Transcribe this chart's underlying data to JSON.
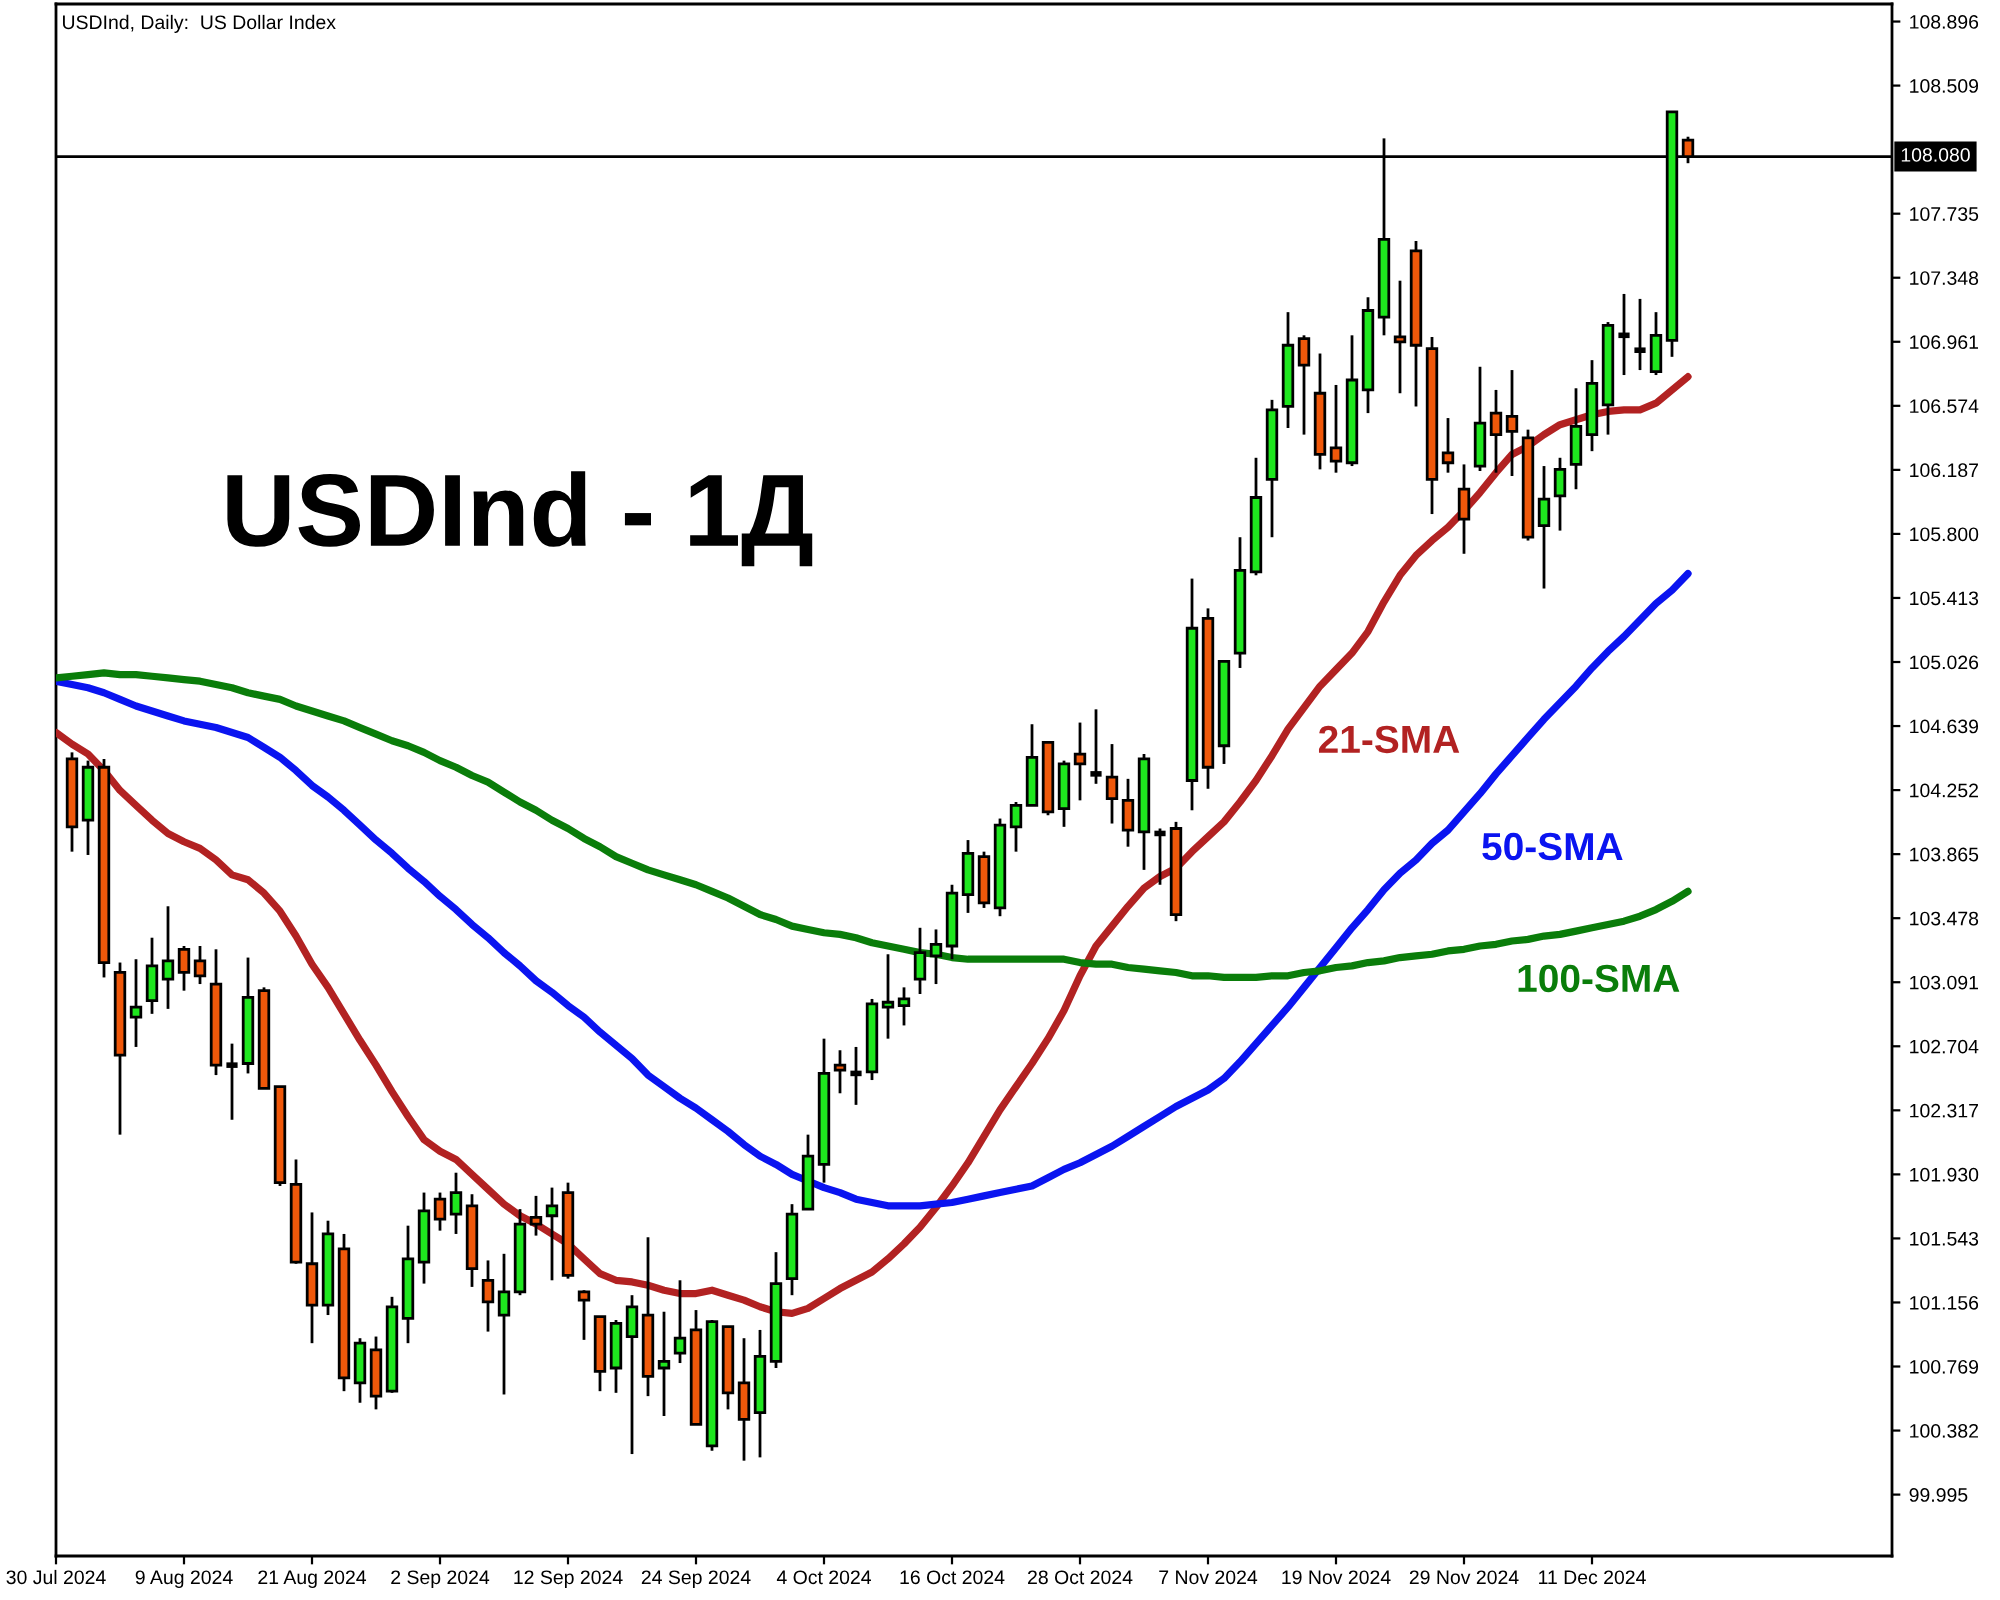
{
  "chart_data": {
    "type": "candlestick",
    "title": "USDInd, Daily:  US Dollar Index",
    "categories": [
      "30 Jul 2024",
      null,
      null,
      null,
      null,
      null,
      null,
      null,
      "9 Aug 2024",
      null,
      null,
      null,
      null,
      null,
      null,
      null,
      "21 Aug 2024",
      null,
      null,
      null,
      null,
      null,
      null,
      null,
      "2 Sep 2024",
      null,
      null,
      null,
      null,
      null,
      null,
      null,
      "12 Sep 2024",
      null,
      null,
      null,
      null,
      null,
      null,
      null,
      "24 Sep 2024",
      null,
      null,
      null,
      null,
      null,
      null,
      null,
      "4 Oct 2024",
      null,
      null,
      null,
      null,
      null,
      null,
      null,
      "16 Oct 2024",
      null,
      null,
      null,
      null,
      null,
      null,
      null,
      "28 Oct 2024",
      null,
      null,
      null,
      null,
      null,
      null,
      null,
      "7 Nov 2024",
      null,
      null,
      null,
      null,
      null,
      null,
      null,
      "19 Nov 2024",
      null,
      null,
      null,
      null,
      null,
      null,
      null,
      "29 Nov 2024",
      null,
      null,
      null,
      null,
      null,
      null,
      null,
      "11 Dec 2024",
      null,
      null,
      null,
      null,
      null,
      null
    ],
    "ohlc": [
      null,
      [
        104.44,
        104.48,
        103.88,
        104.03
      ],
      [
        104.07,
        104.43,
        103.86,
        104.39
      ],
      [
        104.39,
        104.44,
        103.12,
        103.21
      ],
      [
        103.15,
        103.21,
        102.17,
        102.65
      ],
      [
        102.88,
        103.23,
        102.7,
        102.94
      ],
      [
        102.98,
        103.36,
        102.9,
        103.19
      ],
      [
        103.11,
        103.55,
        102.93,
        103.22
      ],
      [
        103.29,
        103.31,
        103.04,
        103.15
      ],
      [
        103.22,
        103.31,
        103.08,
        103.13
      ],
      [
        103.08,
        103.29,
        102.53,
        102.59
      ],
      [
        102.59,
        102.72,
        102.26,
        102.59
      ],
      [
        102.6,
        103.24,
        102.54,
        103.0
      ],
      [
        103.04,
        103.06,
        102.45,
        102.45
      ],
      [
        102.46,
        102.46,
        101.86,
        101.88
      ],
      [
        101.87,
        102.02,
        101.39,
        101.4
      ],
      [
        101.39,
        101.7,
        100.91,
        101.14
      ],
      [
        101.14,
        101.65,
        101.08,
        101.57
      ],
      [
        101.48,
        101.57,
        100.62,
        100.7
      ],
      [
        100.67,
        100.94,
        100.55,
        100.91
      ],
      [
        100.87,
        100.95,
        100.51,
        100.59
      ],
      [
        100.62,
        101.19,
        100.61,
        101.13
      ],
      [
        101.06,
        101.62,
        100.91,
        101.42
      ],
      [
        101.4,
        101.82,
        101.27,
        101.71
      ],
      [
        101.78,
        101.82,
        101.59,
        101.66
      ],
      [
        101.69,
        101.94,
        101.57,
        101.82
      ],
      [
        101.74,
        101.81,
        101.25,
        101.36
      ],
      [
        101.29,
        101.41,
        100.98,
        101.16
      ],
      [
        101.08,
        101.45,
        100.6,
        101.22
      ],
      [
        101.22,
        101.72,
        101.2,
        101.63
      ],
      [
        101.67,
        101.8,
        101.56,
        101.63
      ],
      [
        101.68,
        101.85,
        101.29,
        101.74
      ],
      [
        101.82,
        101.88,
        101.3,
        101.32
      ],
      [
        101.22,
        101.23,
        100.93,
        101.17
      ],
      [
        101.07,
        101.07,
        100.62,
        100.74
      ],
      [
        100.76,
        101.05,
        100.61,
        101.03
      ],
      [
        100.95,
        101.2,
        100.24,
        101.13
      ],
      [
        101.08,
        101.55,
        100.59,
        100.71
      ],
      [
        100.76,
        101.1,
        100.47,
        100.8
      ],
      [
        100.85,
        101.29,
        100.79,
        100.94
      ],
      [
        100.99,
        101.11,
        100.42,
        100.42
      ],
      [
        100.29,
        101.05,
        100.26,
        101.04
      ],
      [
        101.01,
        101.01,
        100.51,
        100.61
      ],
      [
        100.67,
        100.94,
        100.2,
        100.45
      ],
      [
        100.49,
        100.99,
        100.22,
        100.83
      ],
      [
        100.8,
        101.46,
        100.76,
        101.27
      ],
      [
        101.3,
        101.75,
        101.2,
        101.69
      ],
      [
        101.72,
        102.17,
        101.72,
        102.04
      ],
      [
        101.99,
        102.75,
        101.88,
        102.54
      ],
      [
        102.59,
        102.68,
        102.42,
        102.56
      ],
      [
        102.54,
        102.7,
        102.35,
        102.54
      ],
      [
        102.55,
        102.99,
        102.5,
        102.96
      ],
      [
        102.94,
        103.26,
        102.75,
        102.97
      ],
      [
        102.95,
        103.06,
        102.83,
        102.99
      ],
      [
        103.11,
        103.42,
        103.02,
        103.27
      ],
      [
        103.25,
        103.41,
        103.08,
        103.32
      ],
      [
        103.31,
        103.68,
        103.23,
        103.63
      ],
      [
        103.62,
        103.95,
        103.51,
        103.87
      ],
      [
        103.85,
        103.88,
        103.54,
        103.57
      ],
      [
        103.54,
        104.08,
        103.49,
        104.04
      ],
      [
        104.03,
        104.18,
        103.88,
        104.16
      ],
      [
        104.16,
        104.65,
        104.16,
        104.45
      ],
      [
        104.54,
        104.54,
        104.1,
        104.12
      ],
      [
        104.14,
        104.43,
        104.03,
        104.41
      ],
      [
        104.47,
        104.66,
        104.19,
        104.41
      ],
      [
        104.35,
        104.74,
        104.29,
        104.35
      ],
      [
        104.33,
        104.53,
        104.05,
        104.2
      ],
      [
        104.19,
        104.32,
        103.91,
        104.01
      ],
      [
        104.0,
        104.47,
        103.77,
        104.44
      ],
      [
        103.99,
        104.02,
        103.68,
        103.99
      ],
      [
        104.02,
        104.06,
        103.46,
        103.5
      ],
      [
        104.31,
        105.53,
        104.13,
        105.23
      ],
      [
        105.29,
        105.35,
        104.26,
        104.39
      ],
      [
        104.52,
        105.03,
        104.41,
        105.03
      ],
      [
        105.08,
        105.78,
        104.99,
        105.58
      ],
      [
        105.57,
        106.26,
        105.55,
        106.02
      ],
      [
        106.13,
        106.61,
        105.78,
        106.55
      ],
      [
        106.57,
        107.14,
        106.44,
        106.94
      ],
      [
        106.98,
        107.0,
        106.4,
        106.82
      ],
      [
        106.65,
        106.89,
        106.19,
        106.28
      ],
      [
        106.32,
        106.7,
        106.17,
        106.24
      ],
      [
        106.23,
        107.0,
        106.21,
        106.73
      ],
      [
        106.67,
        107.23,
        106.53,
        107.15
      ],
      [
        107.11,
        108.19,
        107.0,
        107.58
      ],
      [
        106.99,
        107.33,
        106.65,
        106.96
      ],
      [
        107.51,
        107.57,
        106.57,
        106.94
      ],
      [
        106.92,
        106.99,
        105.92,
        106.13
      ],
      [
        106.29,
        106.5,
        106.17,
        106.23
      ],
      [
        106.07,
        106.22,
        105.68,
        105.89
      ],
      [
        106.21,
        106.81,
        106.18,
        106.47
      ],
      [
        106.53,
        106.67,
        106.17,
        106.4
      ],
      [
        106.51,
        106.79,
        106.15,
        106.42
      ],
      [
        106.38,
        106.43,
        105.76,
        105.78
      ],
      [
        105.85,
        106.21,
        105.47,
        106.01
      ],
      [
        106.03,
        106.26,
        105.82,
        106.19
      ],
      [
        106.22,
        106.68,
        106.07,
        106.45
      ],
      [
        106.4,
        106.85,
        106.3,
        106.71
      ],
      [
        106.58,
        107.08,
        106.4,
        107.06
      ],
      [
        107.0,
        107.25,
        106.76,
        107.0
      ],
      [
        106.91,
        107.22,
        106.79,
        106.91
      ],
      [
        106.78,
        107.14,
        106.76,
        107.0
      ],
      [
        106.97,
        108.35,
        106.87,
        108.35
      ],
      [
        108.18,
        108.2,
        108.04,
        108.08
      ]
    ],
    "colors": [
      null,
      "#f0580a",
      "#1ee61e",
      "#f0580a",
      "#f0580a",
      "#1ee61e",
      "#1ee61e",
      "#1ee61e",
      "#f0580a",
      "#f0580a",
      "#f0580a",
      "#000000",
      "#1ee61e",
      "#f0580a",
      "#f0580a",
      "#f0580a",
      "#f0580a",
      "#1ee61e",
      "#f0580a",
      "#1ee61e",
      "#f0580a",
      "#1ee61e",
      "#1ee61e",
      "#1ee61e",
      "#f0580a",
      "#1ee61e",
      "#f0580a",
      "#f0580a",
      "#1ee61e",
      "#1ee61e",
      "#f0580a",
      "#1ee61e",
      "#f0580a",
      "#f0580a",
      "#f0580a",
      "#1ee61e",
      "#1ee61e",
      "#f0580a",
      "#1ee61e",
      "#1ee61e",
      "#f0580a",
      "#1ee61e",
      "#f0580a",
      "#f0580a",
      "#1ee61e",
      "#1ee61e",
      "#1ee61e",
      "#1ee61e",
      "#1ee61e",
      "#f0580a",
      "#000000",
      "#1ee61e",
      "#1ee61e",
      "#1ee61e",
      "#1ee61e",
      "#1ee61e",
      "#1ee61e",
      "#1ee61e",
      "#f0580a",
      "#1ee61e",
      "#1ee61e",
      "#1ee61e",
      "#f0580a",
      "#1ee61e",
      "#f0580a",
      "#000000",
      "#f0580a",
      "#f0580a",
      "#1ee61e",
      "#000000",
      "#f0580a",
      "#1ee61e",
      "#f0580a",
      "#1ee61e",
      "#1ee61e",
      "#1ee61e",
      "#1ee61e",
      "#1ee61e",
      "#f0580a",
      "#f0580a",
      "#f0580a",
      "#1ee61e",
      "#1ee61e",
      "#1ee61e",
      "#f0580a",
      "#f0580a",
      "#f0580a",
      "#f0580a",
      "#f0580a",
      "#1ee61e",
      "#f0580a",
      "#f0580a",
      "#f0580a",
      "#1ee61e",
      "#1ee61e",
      "#1ee61e",
      "#1ee61e",
      "#1ee61e",
      "#000000",
      "#000000",
      "#1ee61e",
      "#1ee61e",
      "#f0580a"
    ],
    "series": [
      {
        "name": "21-SMA",
        "type": "line",
        "color": "#b22222",
        "values": [
          104.6,
          104.53,
          104.47,
          104.37,
          104.25,
          104.16,
          104.07,
          103.99,
          103.94,
          103.9,
          103.83,
          103.74,
          103.71,
          103.63,
          103.52,
          103.37,
          103.2,
          103.06,
          102.9,
          102.74,
          102.59,
          102.43,
          102.28,
          102.14,
          102.07,
          102.02,
          101.93,
          101.84,
          101.75,
          101.68,
          101.63,
          101.57,
          101.51,
          101.42,
          101.33,
          101.29,
          101.28,
          101.26,
          101.23,
          101.21,
          101.21,
          101.23,
          101.2,
          101.17,
          101.13,
          101.1,
          101.09,
          101.12,
          101.18,
          101.24,
          101.29,
          101.34,
          101.42,
          101.51,
          101.61,
          101.73,
          101.86,
          102.0,
          102.16,
          102.32,
          102.46,
          102.6,
          102.75,
          102.92,
          103.13,
          103.31,
          103.43,
          103.55,
          103.66,
          103.73,
          103.78,
          103.88,
          103.97,
          104.06,
          104.18,
          104.31,
          104.46,
          104.62,
          104.75,
          104.88,
          104.98,
          105.08,
          105.21,
          105.39,
          105.55,
          105.67,
          105.76,
          105.84,
          105.94,
          106.05,
          106.17,
          106.28,
          106.33,
          106.4,
          106.46,
          106.49,
          106.52,
          106.54,
          106.55,
          106.55,
          106.59,
          106.67,
          106.75
        ]
      },
      {
        "name": "50-SMA",
        "type": "line",
        "color": "#0a14f0",
        "values": [
          104.91,
          104.89,
          104.87,
          104.84,
          104.8,
          104.76,
          104.73,
          104.7,
          104.67,
          104.65,
          104.63,
          104.6,
          104.57,
          104.51,
          104.45,
          104.37,
          104.28,
          104.21,
          104.13,
          104.04,
          103.95,
          103.87,
          103.78,
          103.7,
          103.61,
          103.53,
          103.44,
          103.36,
          103.27,
          103.19,
          103.1,
          103.03,
          102.95,
          102.88,
          102.79,
          102.71,
          102.63,
          102.53,
          102.46,
          102.39,
          102.33,
          102.26,
          102.19,
          102.11,
          102.04,
          101.99,
          101.93,
          101.89,
          101.85,
          101.82,
          101.78,
          101.76,
          101.74,
          101.74,
          101.74,
          101.75,
          101.76,
          101.78,
          101.8,
          101.82,
          101.84,
          101.86,
          101.91,
          101.96,
          102.0,
          102.05,
          102.1,
          102.16,
          102.22,
          102.28,
          102.34,
          102.39,
          102.44,
          102.51,
          102.61,
          102.72,
          102.83,
          102.94,
          103.06,
          103.18,
          103.3,
          103.42,
          103.53,
          103.65,
          103.75,
          103.83,
          103.93,
          104.01,
          104.12,
          104.23,
          104.35,
          104.46,
          104.57,
          104.68,
          104.78,
          104.88,
          104.99,
          105.09,
          105.18,
          105.28,
          105.38,
          105.46,
          105.56
        ]
      },
      {
        "name": "100-SMA",
        "type": "line",
        "color": "#0a7d0a",
        "values": [
          104.93,
          104.94,
          104.95,
          104.96,
          104.95,
          104.95,
          104.94,
          104.93,
          104.92,
          104.91,
          104.89,
          104.87,
          104.84,
          104.82,
          104.8,
          104.76,
          104.73,
          104.7,
          104.67,
          104.63,
          104.59,
          104.55,
          104.52,
          104.48,
          104.43,
          104.39,
          104.34,
          104.3,
          104.24,
          104.18,
          104.13,
          104.07,
          104.02,
          103.96,
          103.91,
          103.85,
          103.81,
          103.77,
          103.74,
          103.71,
          103.68,
          103.64,
          103.6,
          103.55,
          103.5,
          103.47,
          103.43,
          103.41,
          103.39,
          103.38,
          103.36,
          103.33,
          103.31,
          103.29,
          103.27,
          103.26,
          103.24,
          103.23,
          103.23,
          103.23,
          103.23,
          103.23,
          103.23,
          103.23,
          103.21,
          103.2,
          103.2,
          103.18,
          103.17,
          103.16,
          103.15,
          103.13,
          103.13,
          103.12,
          103.12,
          103.12,
          103.13,
          103.13,
          103.15,
          103.16,
          103.18,
          103.19,
          103.21,
          103.22,
          103.24,
          103.25,
          103.26,
          103.28,
          103.29,
          103.31,
          103.32,
          103.34,
          103.35,
          103.37,
          103.38,
          103.4,
          103.42,
          103.44,
          103.46,
          103.49,
          103.53,
          103.58,
          103.64
        ]
      }
    ],
    "ylim": [
      99.624,
      109.002
    ],
    "yticks": [
      99.995,
      100.382,
      100.769,
      101.156,
      101.543,
      {
        "value": 101.93,
        "label": "101.930"
      },
      102.317,
      102.704,
      103.091,
      103.478,
      103.865,
      104.252,
      104.639,
      105.026,
      105.413,
      {
        "value": 105.8,
        "label": "105.800"
      },
      106.187,
      106.574,
      106.961,
      107.348,
      107.735,
      108.509,
      108.896
    ],
    "ref_lines": [
      {
        "axis": "y",
        "value": 108.08,
        "label": "108.080",
        "color": "#000000"
      }
    ],
    "annotations": [
      "USDInd - 1Д"
    ]
  }
}
